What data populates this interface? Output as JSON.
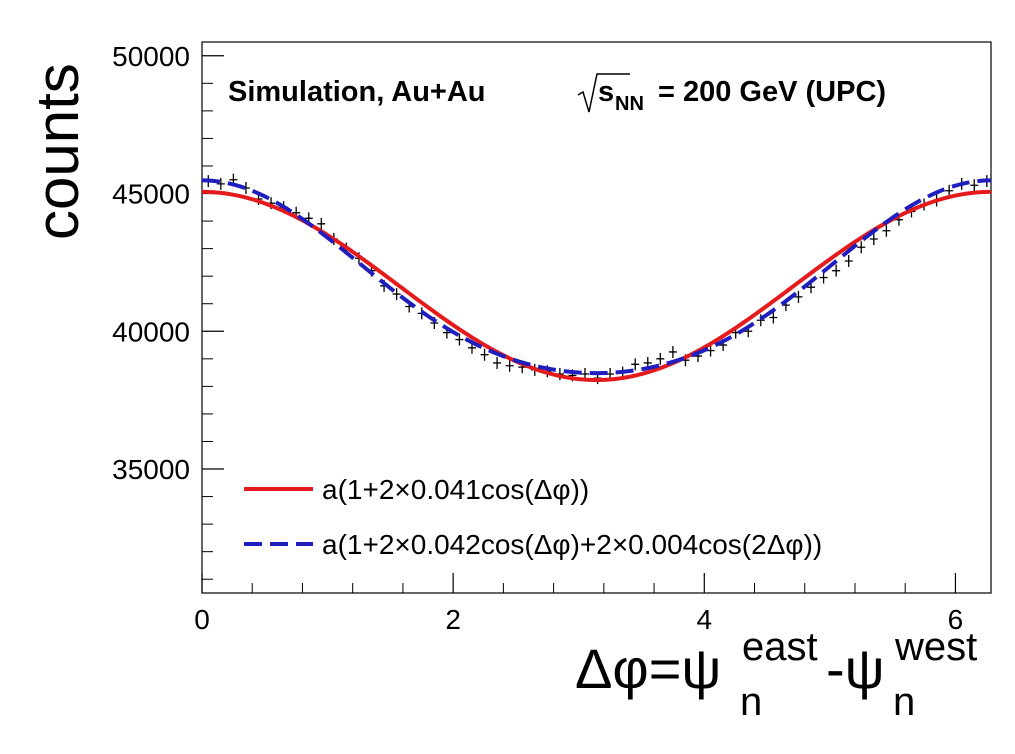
{
  "chart_data": {
    "type": "scatter",
    "title": {
      "main": "Simulation, Au+Au",
      "sqrt_s": "s",
      "sqrt_s_sub": "NN",
      "energy": "= 200 GeV (UPC)"
    },
    "xlabel": {
      "prefix": "Δφ=ψ",
      "sup1": "east",
      "sub1": "n",
      "mid": "-ψ",
      "sup2": "west",
      "sub2": "n"
    },
    "ylabel": "counts",
    "xlim": [
      0,
      6.2832
    ],
    "ylim": [
      30500,
      50500
    ],
    "x_ticks": [
      0,
      2,
      4,
      6
    ],
    "x_tick_labels": [
      "0",
      "2",
      "4",
      "6"
    ],
    "y_ticks": [
      35000,
      40000,
      45000,
      50000
    ],
    "y_tick_labels": [
      "35000",
      "40000",
      "45000",
      "50000"
    ],
    "grid": false,
    "legend_position": "bottom-left",
    "series": [
      {
        "name": "a(1+2×0.041cos(Δφ))",
        "kind": "fit-line",
        "style": "solid",
        "color": "#e41a1c",
        "a": 41646,
        "v1": 0.041,
        "v2": 0
      },
      {
        "name": "a(1+2×0.042cos(Δφ)+2×0.004cos(2Δφ))",
        "kind": "fit-line",
        "style": "dashed",
        "color": "#1f1fbf",
        "a": 41646,
        "v1": 0.042,
        "v2": 0.004
      }
    ],
    "points": {
      "name": "simulation",
      "color": "#000000",
      "x": [
        0.05,
        0.15,
        0.25,
        0.35,
        0.45,
        0.55,
        0.65,
        0.75,
        0.85,
        0.95,
        1.05,
        1.15,
        1.25,
        1.35,
        1.45,
        1.55,
        1.65,
        1.75,
        1.85,
        1.95,
        2.05,
        2.15,
        2.25,
        2.35,
        2.45,
        2.55,
        2.65,
        2.75,
        2.85,
        2.95,
        3.05,
        3.15,
        3.25,
        3.35,
        3.45,
        3.55,
        3.65,
        3.75,
        3.85,
        3.95,
        4.05,
        4.15,
        4.25,
        4.35,
        4.45,
        4.55,
        4.65,
        4.75,
        4.85,
        4.95,
        5.05,
        5.15,
        5.25,
        5.35,
        5.45,
        5.55,
        5.65,
        5.75,
        5.85,
        5.95,
        6.05,
        6.15,
        6.25
      ],
      "y": [
        45450,
        45350,
        45500,
        45200,
        44800,
        44650,
        44500,
        44300,
        44100,
        43900,
        43350,
        43000,
        42650,
        42200,
        41650,
        41350,
        40900,
        40650,
        40300,
        39950,
        39700,
        39400,
        39150,
        38850,
        38750,
        38700,
        38600,
        38550,
        38450,
        38400,
        38450,
        38300,
        38450,
        38500,
        38800,
        38850,
        39000,
        39250,
        38950,
        39100,
        39300,
        39500,
        39950,
        40000,
        40400,
        40500,
        40950,
        41250,
        41600,
        41950,
        42200,
        42550,
        43050,
        43350,
        43650,
        44050,
        44350,
        44600,
        44750,
        45100,
        45350,
        45300,
        45450
      ]
    }
  }
}
